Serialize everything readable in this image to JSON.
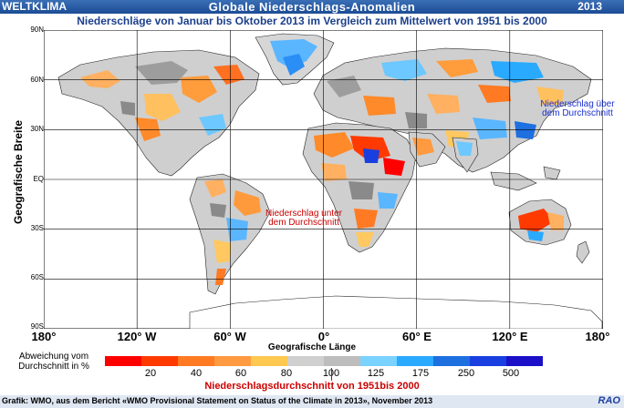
{
  "header": {
    "brand": "WELTKLIMA",
    "title": "Globale Niederschlags-Anomalien",
    "year": "2013"
  },
  "subtitle": "Niederschläge von Januar bis Oktober 2013 im Vergleich zum Mittelwert von 1951 bis 2000",
  "axes": {
    "ylabel": "Geografische Breite",
    "xlabel": "Geografische Länge",
    "lat_ticks": [
      "90N",
      "60N",
      "30N",
      "EQ",
      "30S",
      "60S",
      "90S"
    ],
    "lon_ticks": [
      "180°",
      "120° W",
      "60° W",
      "0°",
      "60° E",
      "120° E",
      "180°"
    ]
  },
  "annotations": {
    "above_line1": "Niederschlag über",
    "above_line2": "dem Durchschnitt",
    "below_line1": "Niederschlag unter",
    "below_line2": "dem Durchschnitt"
  },
  "legend": {
    "caption_line1": "Abweichung vom",
    "caption_line2": "Durchschnitt in %",
    "labels": [
      "20",
      "40",
      "60",
      "80",
      "100",
      "125",
      "175",
      "250",
      "500"
    ],
    "colors": [
      "#ff0000",
      "#ff3a00",
      "#ff7a22",
      "#ff9a40",
      "#ffc850",
      "#cfcfcf",
      "#bdbdbd",
      "#7ad2ff",
      "#2aaaff",
      "#1e6fe0",
      "#1a3fe0",
      "#1b10c8"
    ],
    "reference_line": "Niederschlagsdurchschnitt von 1951bis 2000"
  },
  "footer": {
    "source": "Grafik: WMO, aus dem Bericht «WMO Provisional Statement on Status of the Climate in 2013», November 2013",
    "logo": "RAO"
  }
}
